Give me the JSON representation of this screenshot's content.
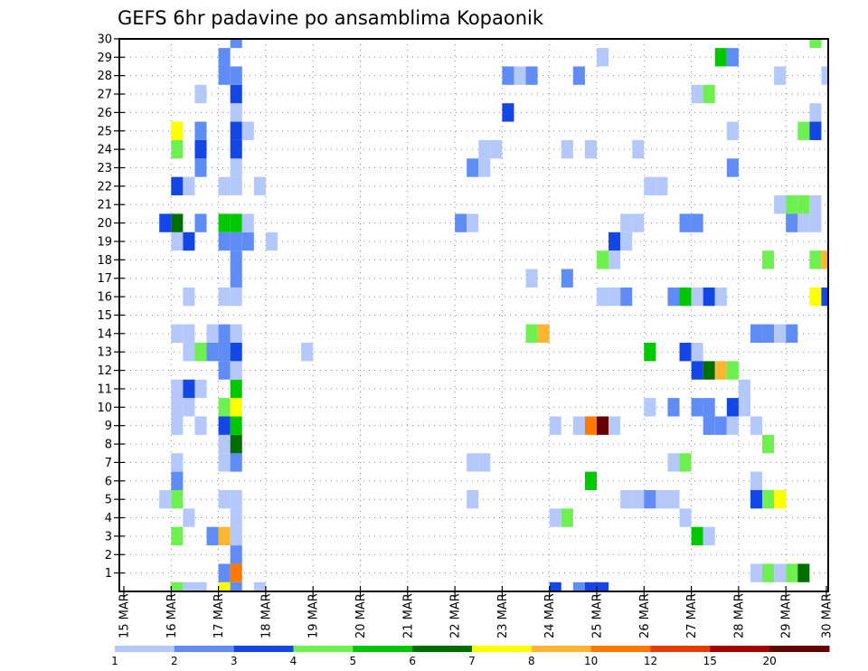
{
  "chart_data": {
    "type": "heatmap",
    "title": "GEFS 6hr padavine po ansamblima Kopaonik",
    "xlabel": "",
    "ylabel": "",
    "x_tick_labels": [
      "15 MAR",
      "16 MAR",
      "17 MAR",
      "18 MAR",
      "19 MAR",
      "20 MAR",
      "21 MAR",
      "22 MAR",
      "23 MAR",
      "24 MAR",
      "25 MAR",
      "26 MAR",
      "27 MAR",
      "28 MAR",
      "29 MAR",
      "30 MAR"
    ],
    "x_unit": "6-hour step from 15 MAR 00Z (4 steps per day)",
    "x_range": [
      0,
      60
    ],
    "y_tick_labels": [
      "1",
      "2",
      "3",
      "4",
      "5",
      "6",
      "7",
      "8",
      "9",
      "10",
      "11",
      "12",
      "13",
      "14",
      "15",
      "16",
      "17",
      "18",
      "19",
      "20",
      "21",
      "22",
      "23",
      "24",
      "25",
      "26",
      "27",
      "28",
      "29",
      "30"
    ],
    "y_range": [
      0,
      30
    ],
    "grid": true,
    "legend": {
      "placement": "bottom",
      "labels": [
        "1",
        "2",
        "3",
        "4",
        "5",
        "6",
        "7",
        "8",
        "10",
        "12",
        "15",
        "20"
      ],
      "colors": [
        "#b4c8fa",
        "#5f8cf5",
        "#1446e6",
        "#6ef050",
        "#00c800",
        "#006e00",
        "#ffff00",
        "#ffb432",
        "#ff7800",
        "#e63c0a",
        "#a50000",
        "#640000"
      ]
    },
    "cells_format": "[time_step, member, category]  category k = colour bin k of legend (1 = 1-2 mm ... 12 = >20 mm)",
    "cells": [
      [
        4,
        0,
        4
      ],
      [
        5,
        0,
        1
      ],
      [
        6,
        0,
        1
      ],
      [
        8,
        0,
        7
      ],
      [
        9,
        0,
        2
      ],
      [
        11,
        0,
        1
      ],
      [
        8,
        1,
        2
      ],
      [
        9,
        1,
        9
      ],
      [
        9,
        2,
        2
      ],
      [
        4,
        3,
        4
      ],
      [
        7,
        3,
        2
      ],
      [
        8,
        3,
        8
      ],
      [
        9,
        3,
        1
      ],
      [
        5,
        4,
        1
      ],
      [
        9,
        4,
        1
      ],
      [
        3,
        5,
        1
      ],
      [
        4,
        5,
        4
      ],
      [
        8,
        5,
        1
      ],
      [
        9,
        5,
        1
      ],
      [
        4,
        6,
        2
      ],
      [
        4,
        7,
        1
      ],
      [
        8,
        7,
        1
      ],
      [
        9,
        7,
        2
      ],
      [
        8,
        8,
        1
      ],
      [
        9,
        8,
        6
      ],
      [
        4,
        9,
        1
      ],
      [
        6,
        9,
        1
      ],
      [
        8,
        9,
        3
      ],
      [
        9,
        9,
        5
      ],
      [
        4,
        10,
        1
      ],
      [
        5,
        10,
        1
      ],
      [
        8,
        10,
        4
      ],
      [
        9,
        10,
        7
      ],
      [
        4,
        11,
        1
      ],
      [
        5,
        11,
        3
      ],
      [
        6,
        11,
        1
      ],
      [
        9,
        11,
        5
      ],
      [
        8,
        12,
        2
      ],
      [
        9,
        12,
        1
      ],
      [
        5,
        13,
        1
      ],
      [
        6,
        13,
        4
      ],
      [
        7,
        13,
        2
      ],
      [
        8,
        13,
        2
      ],
      [
        9,
        13,
        3
      ],
      [
        15,
        13,
        1
      ],
      [
        4,
        14,
        1
      ],
      [
        5,
        14,
        1
      ],
      [
        7,
        14,
        1
      ],
      [
        8,
        14,
        2
      ],
      [
        9,
        14,
        1
      ],
      [
        5,
        16,
        1
      ],
      [
        8,
        16,
        1
      ],
      [
        9,
        16,
        1
      ],
      [
        9,
        17,
        2
      ],
      [
        9,
        18,
        2
      ],
      [
        4,
        19,
        1
      ],
      [
        5,
        19,
        3
      ],
      [
        8,
        19,
        2
      ],
      [
        9,
        19,
        2
      ],
      [
        10,
        19,
        2
      ],
      [
        12,
        19,
        1
      ],
      [
        3,
        20,
        3
      ],
      [
        4,
        20,
        6
      ],
      [
        6,
        20,
        2
      ],
      [
        8,
        20,
        5
      ],
      [
        9,
        20,
        5
      ],
      [
        10,
        20,
        1
      ],
      [
        4,
        22,
        3
      ],
      [
        5,
        22,
        1
      ],
      [
        8,
        22,
        1
      ],
      [
        9,
        22,
        1
      ],
      [
        11,
        22,
        1
      ],
      [
        6,
        23,
        2
      ],
      [
        9,
        23,
        1
      ],
      [
        4,
        24,
        4
      ],
      [
        6,
        24,
        3
      ],
      [
        9,
        24,
        3
      ],
      [
        4,
        25,
        7
      ],
      [
        6,
        25,
        2
      ],
      [
        9,
        25,
        3
      ],
      [
        10,
        25,
        1
      ],
      [
        9,
        26,
        1
      ],
      [
        6,
        27,
        1
      ],
      [
        9,
        27,
        3
      ],
      [
        8,
        28,
        2
      ],
      [
        9,
        28,
        2
      ],
      [
        8,
        29,
        2
      ],
      [
        9,
        30,
        2
      ],
      [
        40,
        29,
        1
      ],
      [
        32,
        28,
        2
      ],
      [
        33,
        28,
        1
      ],
      [
        34,
        28,
        2
      ],
      [
        38,
        28,
        2
      ],
      [
        32,
        26,
        3
      ],
      [
        30,
        24,
        1
      ],
      [
        31,
        24,
        1
      ],
      [
        37,
        24,
        1
      ],
      [
        39,
        24,
        1
      ],
      [
        43,
        24,
        1
      ],
      [
        29,
        23,
        2
      ],
      [
        30,
        23,
        1
      ],
      [
        28,
        20,
        2
      ],
      [
        29,
        20,
        1
      ],
      [
        42,
        20,
        1
      ],
      [
        43,
        20,
        1
      ],
      [
        41,
        19,
        3
      ],
      [
        42,
        19,
        1
      ],
      [
        40,
        18,
        4
      ],
      [
        41,
        18,
        1
      ],
      [
        34,
        17,
        1
      ],
      [
        37,
        17,
        2
      ],
      [
        40,
        16,
        1
      ],
      [
        41,
        16,
        1
      ],
      [
        42,
        16,
        2
      ],
      [
        34,
        14,
        4
      ],
      [
        35,
        14,
        8
      ],
      [
        36,
        9,
        1
      ],
      [
        38,
        9,
        1
      ],
      [
        39,
        9,
        9
      ],
      [
        40,
        9,
        12
      ],
      [
        41,
        9,
        1
      ],
      [
        29,
        7,
        1
      ],
      [
        30,
        7,
        1
      ],
      [
        39,
        6,
        5
      ],
      [
        29,
        5,
        1
      ],
      [
        42,
        5,
        1
      ],
      [
        36,
        4,
        1
      ],
      [
        37,
        4,
        4
      ],
      [
        36,
        0,
        3
      ],
      [
        38,
        0,
        2
      ],
      [
        39,
        0,
        3
      ],
      [
        40,
        0,
        3
      ],
      [
        58,
        30,
        4
      ],
      [
        50,
        29,
        5
      ],
      [
        51,
        29,
        2
      ],
      [
        55,
        28,
        1
      ],
      [
        59,
        28,
        1
      ],
      [
        48,
        27,
        1
      ],
      [
        49,
        27,
        4
      ],
      [
        58,
        26,
        1
      ],
      [
        51,
        25,
        1
      ],
      [
        57,
        25,
        4
      ],
      [
        58,
        25,
        3
      ],
      [
        51,
        23,
        2
      ],
      [
        44,
        22,
        1
      ],
      [
        45,
        22,
        1
      ],
      [
        55,
        21,
        1
      ],
      [
        56,
        21,
        4
      ],
      [
        57,
        21,
        4
      ],
      [
        58,
        21,
        1
      ],
      [
        47,
        20,
        2
      ],
      [
        48,
        20,
        2
      ],
      [
        56,
        20,
        2
      ],
      [
        57,
        20,
        1
      ],
      [
        58,
        20,
        1
      ],
      [
        54,
        18,
        4
      ],
      [
        58,
        18,
        4
      ],
      [
        59,
        18,
        8
      ],
      [
        46,
        16,
        2
      ],
      [
        47,
        16,
        5
      ],
      [
        48,
        16,
        1
      ],
      [
        49,
        16,
        3
      ],
      [
        50,
        16,
        1
      ],
      [
        58,
        16,
        7
      ],
      [
        59,
        16,
        3
      ],
      [
        53,
        14,
        2
      ],
      [
        54,
        14,
        2
      ],
      [
        55,
        14,
        1
      ],
      [
        56,
        14,
        2
      ],
      [
        44,
        13,
        5
      ],
      [
        47,
        13,
        3
      ],
      [
        48,
        13,
        1
      ],
      [
        48,
        12,
        3
      ],
      [
        49,
        12,
        6
      ],
      [
        50,
        12,
        8
      ],
      [
        51,
        12,
        4
      ],
      [
        52,
        11,
        1
      ],
      [
        52,
        10,
        1
      ],
      [
        44,
        10,
        1
      ],
      [
        46,
        10,
        2
      ],
      [
        48,
        10,
        2
      ],
      [
        49,
        10,
        2
      ],
      [
        51,
        10,
        3
      ],
      [
        49,
        9,
        2
      ],
      [
        50,
        9,
        2
      ],
      [
        51,
        9,
        1
      ],
      [
        53,
        9,
        1
      ],
      [
        54,
        8,
        4
      ],
      [
        46,
        7,
        1
      ],
      [
        47,
        7,
        4
      ],
      [
        53,
        6,
        1
      ],
      [
        43,
        5,
        1
      ],
      [
        44,
        5,
        2
      ],
      [
        45,
        5,
        1
      ],
      [
        46,
        5,
        1
      ],
      [
        53,
        5,
        3
      ],
      [
        54,
        5,
        4
      ],
      [
        55,
        5,
        7
      ],
      [
        47,
        4,
        1
      ],
      [
        48,
        3,
        5
      ],
      [
        49,
        3,
        1
      ],
      [
        53,
        1,
        1
      ],
      [
        54,
        1,
        4
      ],
      [
        55,
        1,
        1
      ],
      [
        56,
        1,
        4
      ],
      [
        57,
        1,
        6
      ]
    ]
  }
}
